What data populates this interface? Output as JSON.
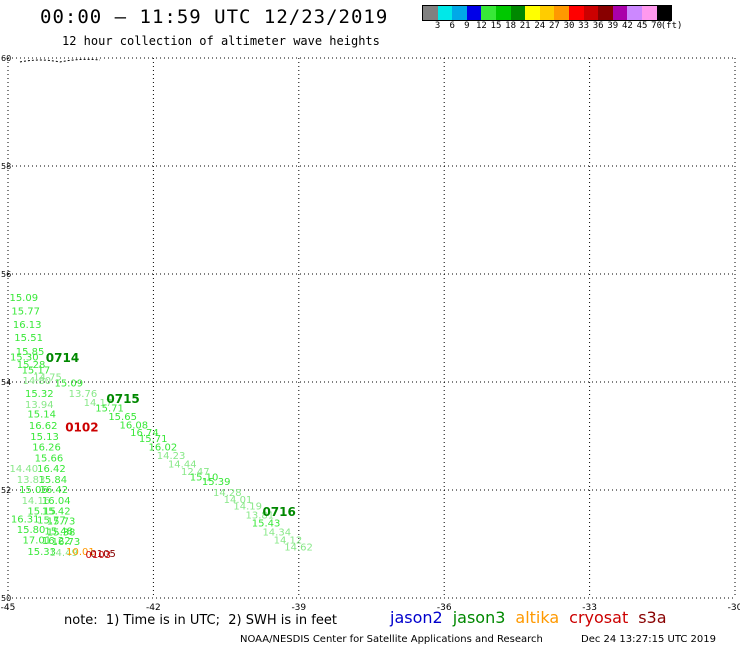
{
  "header": {
    "title": "00:00 – 11:59 UTC 12/23/2019",
    "subtitle": "12 hour collection of altimeter wave heights"
  },
  "color_legend": {
    "unit": "(ft)",
    "colors": [
      "#808080",
      "#00e8e8",
      "#00a8e8",
      "#0000e8",
      "#38e838",
      "#00c800",
      "#008800",
      "#ffff00",
      "#ffcc00",
      "#ff9900",
      "#ff0000",
      "#cc0000",
      "#880000",
      "#aa00aa",
      "#cc88ff",
      "#ff99ee",
      "#000000"
    ],
    "labels": [
      "3",
      "6",
      "9",
      "12",
      "15",
      "18",
      "21",
      "24",
      "27",
      "30",
      "33",
      "36",
      "39",
      "42",
      "45",
      "70"
    ]
  },
  "axes": {
    "lat_labels": [
      "60",
      "58",
      "56",
      "54",
      "52",
      "50"
    ],
    "lon_labels": [
      "-45",
      "-42",
      "-39",
      "-36",
      "-33",
      "-30"
    ]
  },
  "map_labels": [
    {
      "t": "15.09",
      "c": "#38e838",
      "lon": -44.97,
      "lat": 55.5
    },
    {
      "t": "15.77",
      "c": "#38e838",
      "lon": -44.93,
      "lat": 55.25
    },
    {
      "t": "16.13",
      "c": "#38e838",
      "lon": -44.9,
      "lat": 55.0
    },
    {
      "t": "15.51",
      "c": "#38e838",
      "lon": -44.87,
      "lat": 54.76
    },
    {
      "t": "15.85",
      "c": "#38e838",
      "lon": -44.84,
      "lat": 54.5
    },
    {
      "t": "15.30",
      "c": "#38e838",
      "lon": -44.96,
      "lat": 54.4
    },
    {
      "t": "15.28",
      "c": "#38e838",
      "lon": -44.82,
      "lat": 54.26
    },
    {
      "t": "15.17",
      "c": "#38e838",
      "lon": -44.72,
      "lat": 54.16
    },
    {
      "t": "14.75",
      "c": "#88e888",
      "lon": -44.48,
      "lat": 54.03
    },
    {
      "t": "14.80",
      "c": "#88e888",
      "lon": -44.7,
      "lat": 53.96
    },
    {
      "t": "15.09",
      "c": "#38e838",
      "lon": -44.04,
      "lat": 53.92
    },
    {
      "t": "13.76",
      "c": "#88e888",
      "lon": -43.75,
      "lat": 53.72
    },
    {
      "t": "15.32",
      "c": "#38e838",
      "lon": -44.65,
      "lat": 53.72
    },
    {
      "t": "14.17",
      "c": "#88e888",
      "lon": -43.44,
      "lat": 53.56
    },
    {
      "t": "13.94",
      "c": "#88e888",
      "lon": -44.65,
      "lat": 53.52
    },
    {
      "t": "15.71",
      "c": "#38e838",
      "lon": -43.2,
      "lat": 53.45
    },
    {
      "t": "15.14",
      "c": "#38e838",
      "lon": -44.6,
      "lat": 53.34
    },
    {
      "t": "15.65",
      "c": "#38e838",
      "lon": -42.93,
      "lat": 53.3
    },
    {
      "t": "16.08",
      "c": "#38e838",
      "lon": -42.7,
      "lat": 53.14
    },
    {
      "t": "16.62",
      "c": "#38e838",
      "lon": -44.57,
      "lat": 53.13
    },
    {
      "t": "16.74",
      "c": "#38e838",
      "lon": -42.48,
      "lat": 53.0
    },
    {
      "t": "15.13",
      "c": "#38e838",
      "lon": -44.54,
      "lat": 52.93
    },
    {
      "t": "15.71",
      "c": "#38e838",
      "lon": -42.3,
      "lat": 52.89
    },
    {
      "t": "16.02",
      "c": "#38e838",
      "lon": -42.1,
      "lat": 52.73
    },
    {
      "t": "16.26",
      "c": "#38e838",
      "lon": -44.5,
      "lat": 52.73
    },
    {
      "t": "14.23",
      "c": "#88e888",
      "lon": -41.93,
      "lat": 52.57
    },
    {
      "t": "15.66",
      "c": "#38e838",
      "lon": -44.45,
      "lat": 52.53
    },
    {
      "t": "14.44",
      "c": "#88e888",
      "lon": -41.7,
      "lat": 52.42
    },
    {
      "t": "14.40",
      "c": "#88e888",
      "lon": -44.97,
      "lat": 52.33
    },
    {
      "t": "16.42",
      "c": "#38e838",
      "lon": -44.4,
      "lat": 52.33
    },
    {
      "t": "12.47",
      "c": "#88e888",
      "lon": -41.43,
      "lat": 52.28
    },
    {
      "t": "15.10",
      "c": "#38e838",
      "lon": -41.25,
      "lat": 52.18
    },
    {
      "t": "13.83",
      "c": "#88e888",
      "lon": -44.82,
      "lat": 52.13
    },
    {
      "t": "15.84",
      "c": "#38e838",
      "lon": -44.37,
      "lat": 52.13
    },
    {
      "t": "15.39",
      "c": "#38e838",
      "lon": -41.0,
      "lat": 52.09
    },
    {
      "t": "15.06",
      "c": "#38e838",
      "lon": -44.77,
      "lat": 51.94
    },
    {
      "t": "16.42",
      "c": "#38e838",
      "lon": -44.35,
      "lat": 51.94
    },
    {
      "t": "14.28",
      "c": "#88e888",
      "lon": -40.77,
      "lat": 51.89
    },
    {
      "t": "14.01",
      "c": "#88e888",
      "lon": -40.55,
      "lat": 51.76
    },
    {
      "t": "14.16",
      "c": "#88e888",
      "lon": -44.72,
      "lat": 51.74
    },
    {
      "t": "16.04",
      "c": "#38e838",
      "lon": -44.3,
      "lat": 51.74
    },
    {
      "t": "14.19",
      "c": "#88e888",
      "lon": -40.35,
      "lat": 51.64
    },
    {
      "t": "15.15",
      "c": "#38e838",
      "lon": -44.6,
      "lat": 51.55
    },
    {
      "t": "15.42",
      "c": "#38e838",
      "lon": -44.3,
      "lat": 51.55
    },
    {
      "t": "13.81",
      "c": "#88e888",
      "lon": -40.1,
      "lat": 51.47
    },
    {
      "t": "16.31",
      "c": "#38e838",
      "lon": -44.94,
      "lat": 51.4
    },
    {
      "t": "15.77",
      "c": "#38e838",
      "lon": -44.4,
      "lat": 51.38
    },
    {
      "t": "15.73",
      "c": "#38e838",
      "lon": -44.2,
      "lat": 51.36
    },
    {
      "t": "15.43",
      "c": "#38e838",
      "lon": -39.97,
      "lat": 51.32
    },
    {
      "t": "15.80",
      "c": "#38e838",
      "lon": -44.82,
      "lat": 51.2
    },
    {
      "t": "15.48",
      "c": "#38e838",
      "lon": -44.25,
      "lat": 51.18
    },
    {
      "t": "15.38",
      "c": "#38e838",
      "lon": -44.2,
      "lat": 51.16
    },
    {
      "t": "14.34",
      "c": "#88e888",
      "lon": -39.75,
      "lat": 51.16
    },
    {
      "t": "17.01",
      "c": "#38e838",
      "lon": -44.7,
      "lat": 51.01
    },
    {
      "t": "16.22",
      "c": "#38e838",
      "lon": -44.3,
      "lat": 51.0
    },
    {
      "t": "16.73",
      "c": "#38e838",
      "lon": -44.1,
      "lat": 50.98
    },
    {
      "t": "14.12",
      "c": "#88e888",
      "lon": -39.52,
      "lat": 51.01
    },
    {
      "t": "14.62",
      "c": "#88e888",
      "lon": -39.3,
      "lat": 50.88
    },
    {
      "t": "15.33",
      "c": "#38e838",
      "lon": -44.6,
      "lat": 50.8
    },
    {
      "t": "14.49",
      "c": "#88e888",
      "lon": -44.15,
      "lat": 50.78
    },
    {
      "t": "10.01",
      "c": "#ff9900",
      "lon": -43.8,
      "lat": 50.8
    },
    {
      "t": "0105",
      "c": "#880000",
      "lon": -43.3,
      "lat": 50.76
    },
    {
      "t": "0103",
      "c": "#cc0000",
      "lon": -43.4,
      "lat": 50.74
    }
  ],
  "pass_times": [
    {
      "t": "0714",
      "c": "#008800",
      "lon": -44.22,
      "lat": 54.37
    },
    {
      "t": "0715",
      "c": "#008800",
      "lon": -42.97,
      "lat": 53.61
    },
    {
      "t": "0102",
      "c": "#cc0000",
      "lon": -43.82,
      "lat": 53.08
    },
    {
      "t": "0716",
      "c": "#008800",
      "lon": -39.75,
      "lat": 51.52
    }
  ],
  "footer": {
    "note": "note:  1) Time is in UTC;  2) SWH is in feet",
    "satellites": [
      {
        "name": "jason2",
        "color": "#0000cc"
      },
      {
        "name": "jason3",
        "color": "#008800"
      },
      {
        "name": "altika",
        "color": "#ff9900"
      },
      {
        "name": "cryosat",
        "color": "#cc0000"
      },
      {
        "name": "s3a",
        "color": "#880000"
      }
    ],
    "credit": "NOAA/NESDIS Center for Satellite Applications and Research",
    "timestamp": "Dec 24 13:27:15 UTC 2019"
  }
}
